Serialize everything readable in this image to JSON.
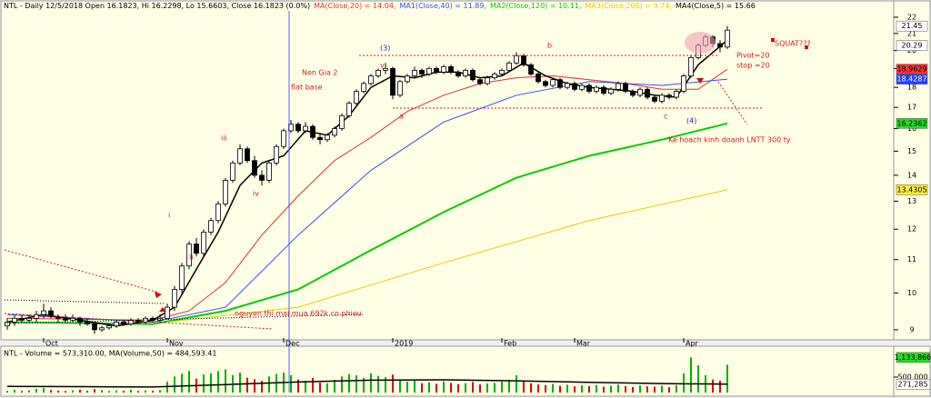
{
  "chart_data": [
    {
      "type": "candlestick",
      "header": "NTL - Daily 12/5/2018 Open 16.1823, Hi 16.2298, Lo 15.6603, Close 16.1823 (0.0%)",
      "log": true,
      "xlim": [
        -0.375,
        121.875
      ],
      "ylim": [
        8.79,
        22.4
      ],
      "yticks": [
        9,
        10,
        11,
        12,
        13,
        14,
        15,
        16,
        17,
        18,
        19,
        20,
        21,
        22
      ],
      "categories": [
        null,
        null,
        null,
        null,
        null,
        "Oct",
        null,
        null,
        null,
        null,
        null,
        null,
        null,
        null,
        null,
        null,
        null,
        null,
        null,
        null,
        null,
        null,
        "Nov",
        null,
        null,
        null,
        null,
        null,
        null,
        null,
        null,
        null,
        null,
        null,
        null,
        null,
        null,
        null,
        "Dec",
        null,
        null,
        null,
        null,
        null,
        null,
        null,
        null,
        null,
        null,
        null,
        null,
        null,
        null,
        "2019",
        null,
        null,
        null,
        null,
        null,
        null,
        null,
        null,
        null,
        null,
        null,
        null,
        null,
        null,
        "Feb",
        null,
        null,
        null,
        null,
        null,
        null,
        null,
        null,
        null,
        "Mar",
        null,
        null,
        null,
        null,
        null,
        null,
        null,
        null,
        null,
        null,
        null,
        null,
        null,
        null,
        "Apr",
        null,
        null,
        null,
        null,
        null,
        null
      ],
      "ohlc": [
        [
          9.1,
          9.3,
          9.0,
          9.2
        ],
        [
          9.2,
          9.4,
          9.1,
          9.3
        ],
        [
          9.3,
          9.4,
          9.2,
          9.25
        ],
        [
          9.25,
          9.4,
          9.2,
          9.3
        ],
        [
          9.3,
          9.5,
          9.2,
          9.4
        ],
        [
          9.4,
          9.7,
          9.3,
          9.5
        ],
        [
          9.5,
          9.6,
          9.3,
          9.35
        ],
        [
          9.35,
          9.4,
          9.2,
          9.3
        ],
        [
          9.3,
          9.4,
          9.2,
          9.25
        ],
        [
          9.25,
          9.4,
          9.2,
          9.3
        ],
        [
          9.3,
          9.35,
          9.1,
          9.2
        ],
        [
          9.2,
          9.3,
          9.1,
          9.15
        ],
        [
          9.15,
          9.2,
          8.9,
          9.0
        ],
        [
          9.0,
          9.1,
          8.95,
          9.05
        ],
        [
          9.05,
          9.15,
          9.0,
          9.1
        ],
        [
          9.1,
          9.25,
          9.05,
          9.2
        ],
        [
          9.2,
          9.25,
          9.1,
          9.15
        ],
        [
          9.15,
          9.3,
          9.1,
          9.25
        ],
        [
          9.25,
          9.3,
          9.15,
          9.2
        ],
        [
          9.2,
          9.35,
          9.15,
          9.3
        ],
        [
          9.3,
          9.35,
          9.2,
          9.25
        ],
        [
          9.25,
          9.4,
          9.2,
          9.3
        ],
        [
          9.3,
          9.7,
          9.3,
          9.6
        ],
        [
          9.6,
          10.2,
          9.5,
          10.1
        ],
        [
          10.1,
          10.9,
          10.0,
          10.8
        ],
        [
          10.8,
          11.6,
          10.7,
          11.5
        ],
        [
          11.5,
          11.7,
          11.1,
          11.2
        ],
        [
          11.2,
          12.0,
          11.1,
          11.9
        ],
        [
          11.9,
          12.4,
          11.8,
          12.3
        ],
        [
          12.3,
          13.0,
          12.2,
          12.9
        ],
        [
          12.9,
          13.9,
          12.8,
          13.8
        ],
        [
          13.8,
          14.6,
          13.7,
          14.5
        ],
        [
          14.5,
          15.3,
          14.4,
          15.1
        ],
        [
          15.1,
          15.2,
          14.5,
          14.6
        ],
        [
          14.6,
          14.8,
          13.9,
          14.0
        ],
        [
          14.0,
          14.2,
          13.6,
          13.8
        ],
        [
          13.8,
          14.6,
          13.7,
          14.5
        ],
        [
          14.5,
          15.3,
          14.4,
          15.2
        ],
        [
          15.2,
          16.0,
          15.1,
          15.9
        ],
        [
          15.9,
          16.4,
          15.8,
          16.2
        ],
        [
          16.2,
          16.3,
          15.8,
          15.9
        ],
        [
          15.9,
          16.3,
          15.8,
          16.1
        ],
        [
          16.1,
          16.2,
          15.5,
          15.6
        ],
        [
          15.6,
          15.8,
          15.3,
          15.5
        ],
        [
          15.5,
          15.8,
          15.4,
          15.7
        ],
        [
          15.7,
          16.1,
          15.6,
          16.0
        ],
        [
          16.0,
          16.7,
          15.9,
          16.6
        ],
        [
          16.6,
          17.3,
          16.5,
          17.2
        ],
        [
          17.2,
          17.9,
          17.1,
          17.8
        ],
        [
          17.8,
          18.3,
          17.7,
          18.2
        ],
        [
          18.2,
          18.7,
          18.1,
          18.6
        ],
        [
          18.6,
          19.0,
          18.5,
          18.9
        ],
        [
          18.9,
          19.3,
          18.7,
          19.0
        ],
        [
          19.0,
          19.1,
          17.4,
          17.6
        ],
        [
          17.6,
          18.4,
          17.5,
          18.3
        ],
        [
          18.3,
          18.7,
          18.2,
          18.6
        ],
        [
          18.6,
          19.1,
          18.5,
          18.9
        ],
        [
          18.9,
          19.0,
          18.5,
          18.7
        ],
        [
          18.7,
          19.1,
          18.6,
          19.0
        ],
        [
          19.0,
          19.1,
          18.7,
          18.8
        ],
        [
          18.8,
          19.2,
          18.7,
          19.1
        ],
        [
          19.1,
          19.2,
          18.7,
          18.8
        ],
        [
          18.8,
          18.9,
          18.5,
          18.6
        ],
        [
          18.6,
          19.0,
          18.5,
          18.9
        ],
        [
          18.9,
          19.0,
          18.3,
          18.4
        ],
        [
          18.4,
          18.5,
          18.1,
          18.2
        ],
        [
          18.2,
          18.6,
          18.1,
          18.5
        ],
        [
          18.5,
          18.8,
          18.4,
          18.7
        ],
        [
          18.7,
          19.0,
          18.6,
          18.9
        ],
        [
          18.9,
          19.4,
          18.8,
          19.3
        ],
        [
          19.3,
          19.9,
          19.2,
          19.7
        ],
        [
          19.7,
          19.8,
          19.1,
          19.2
        ],
        [
          19.2,
          19.3,
          18.6,
          18.7
        ],
        [
          18.7,
          18.8,
          18.2,
          18.3
        ],
        [
          18.3,
          18.4,
          18.0,
          18.1
        ],
        [
          18.1,
          18.5,
          18.0,
          18.4
        ],
        [
          18.4,
          18.5,
          17.9,
          18.0
        ],
        [
          18.0,
          18.3,
          17.9,
          18.2
        ],
        [
          18.2,
          18.3,
          17.8,
          17.9
        ],
        [
          17.9,
          18.2,
          17.8,
          18.1
        ],
        [
          18.1,
          18.2,
          17.7,
          17.8
        ],
        [
          17.8,
          18.1,
          17.7,
          18.0
        ],
        [
          18.0,
          18.1,
          17.6,
          17.7
        ],
        [
          17.7,
          18.0,
          17.6,
          17.9
        ],
        [
          17.9,
          18.3,
          17.8,
          18.2
        ],
        [
          18.2,
          18.3,
          17.7,
          17.8
        ],
        [
          17.8,
          17.9,
          17.5,
          17.6
        ],
        [
          17.6,
          18.0,
          17.5,
          17.9
        ],
        [
          17.9,
          18.0,
          17.4,
          17.5
        ],
        [
          17.5,
          17.6,
          17.2,
          17.3
        ],
        [
          17.3,
          17.7,
          17.2,
          17.6
        ],
        [
          17.6,
          17.7,
          17.4,
          17.5
        ],
        [
          17.5,
          17.9,
          17.4,
          17.8
        ],
        [
          17.8,
          18.7,
          17.7,
          18.6
        ],
        [
          18.6,
          19.7,
          18.5,
          19.6
        ],
        [
          19.6,
          20.4,
          19.5,
          20.3
        ],
        [
          20.3,
          20.9,
          20.2,
          20.8
        ],
        [
          20.8,
          20.9,
          20.2,
          20.4
        ],
        [
          20.4,
          20.6,
          19.9,
          20.2
        ],
        [
          20.2,
          21.45,
          20.1,
          21.2
        ]
      ],
      "series": [
        {
          "name": "MA(Close,20) = 14.04,",
          "color": "#e03030",
          "line_width": 1,
          "x": [
            0,
            20,
            25,
            30,
            35,
            40,
            45,
            50,
            55,
            60,
            65,
            70,
            75,
            80,
            85,
            90,
            95,
            99
          ],
          "values": [
            9.3,
            9.25,
            9.5,
            10.3,
            11.8,
            13.2,
            14.6,
            15.6,
            16.8,
            17.6,
            18.2,
            18.5,
            18.6,
            18.4,
            18.2,
            17.9,
            17.9,
            18.96
          ]
        },
        {
          "name": "MA1(Close,40) = 11.89,",
          "color": "#3050ff",
          "line_width": 1,
          "x": [
            0,
            20,
            30,
            40,
            50,
            60,
            70,
            80,
            90,
            99
          ],
          "values": [
            9.4,
            9.2,
            9.6,
            11.8,
            14.2,
            16.3,
            17.6,
            18.3,
            18.1,
            18.4287
          ]
        },
        {
          "name": "MA2(Close,120) = 10.11,",
          "color": "#00cc00",
          "line_width": 2,
          "x": [
            0,
            20,
            30,
            40,
            50,
            60,
            70,
            80,
            90,
            99
          ],
          "values": [
            9.2,
            9.15,
            9.5,
            10.1,
            11.3,
            12.6,
            13.9,
            14.8,
            15.5,
            16.2362
          ]
        },
        {
          "name": "MA3(Close,200) = 9.74,",
          "color": "#f0c800",
          "line_width": 1,
          "x": [
            22,
            40,
            60,
            80,
            99
          ],
          "values": [
            9.2,
            9.6,
            10.9,
            12.3,
            13.4305
          ]
        },
        {
          "name": "MA4(Close,5) = 15.66",
          "color": "#000000",
          "line_width": 1.5,
          "x": [
            0,
            5,
            10,
            15,
            20,
            23,
            26,
            29,
            32,
            35,
            38,
            41,
            44,
            47,
            50,
            53,
            56,
            59,
            62,
            65,
            68,
            71,
            74,
            77,
            80,
            83,
            86,
            89,
            92,
            95,
            99
          ],
          "values": [
            9.2,
            9.4,
            9.25,
            9.1,
            9.25,
            9.6,
            10.7,
            11.9,
            13.6,
            14.5,
            14.8,
            15.9,
            15.7,
            16.6,
            18.0,
            18.6,
            18.5,
            18.8,
            18.8,
            18.5,
            18.6,
            19.3,
            18.6,
            18.2,
            18.0,
            17.9,
            17.8,
            17.6,
            17.5,
            19.2,
            20.6
          ]
        }
      ],
      "right_labels": [
        {
          "value": 21.45,
          "color": "#ffffff"
        },
        {
          "value": 20.29,
          "color": "#ffffff"
        },
        {
          "value": 18.9629,
          "color": "#ff3030"
        },
        {
          "value": 18.4287,
          "color": "#2040ff"
        },
        {
          "value": 16.2362,
          "color": "#22dd22"
        },
        {
          "value": 13.4305,
          "color": "#ffee33"
        }
      ],
      "annotations": [
        {
          "text": "(3)",
          "color": "#2020cc"
        },
        {
          "text": "b",
          "color": "#cc2020"
        },
        {
          "text": "Nen Gia 2",
          "color": "#cc2020"
        },
        {
          "text": "flat base",
          "color": "#cc2020"
        },
        {
          "text": "v",
          "color": "#cc2020"
        },
        {
          "text": "iii",
          "color": "#cc2020"
        },
        {
          "text": "iv",
          "color": "#cc2020"
        },
        {
          "text": "ii",
          "color": "#cc2020"
        },
        {
          "text": "i",
          "color": "#cc2020"
        },
        {
          "text": "a",
          "color": "#cc2020"
        },
        {
          "text": "c",
          "color": "#cc2020"
        },
        {
          "text": "(4)",
          "color": "#2020cc"
        },
        {
          "text": "Pivot=20",
          "color": "#cc2020"
        },
        {
          "text": "stop =20",
          "color": "#cc2020"
        },
        {
          "text": "SQUAT???",
          "color": "#cc2020"
        },
        {
          "text": "Ke hoach kinh doanh LNTT 300 ty",
          "color": "#cc2020"
        },
        {
          "text": "nguyen thi mai mua 692k co phieu",
          "color": "#cc2020"
        }
      ]
    },
    {
      "type": "bar",
      "title": "NTL - Volume = 573,310.00, MA(Volume,50) = 484,593.41",
      "up_color": "#00b000",
      "down_color": "#e00000",
      "ylim": [
        0,
        1440000
      ],
      "yticks": [
        {
          "value": 500000,
          "label": "500,000"
        }
      ],
      "values": [
        60000,
        90000,
        50000,
        70000,
        120000,
        150000,
        80000,
        60000,
        50000,
        70000,
        90000,
        60000,
        110000,
        80000,
        50000,
        70000,
        60000,
        90000,
        50000,
        70000,
        60000,
        80000,
        350000,
        520000,
        610000,
        700000,
        450000,
        580000,
        620000,
        690000,
        750000,
        560000,
        640000,
        480000,
        430000,
        380000,
        520000,
        600000,
        650000,
        560000,
        420000,
        380000,
        470000,
        320000,
        300000,
        410000,
        520000,
        600000,
        560000,
        480000,
        620000,
        540000,
        500000,
        580000,
        420000,
        350000,
        390000,
        300000,
        330000,
        280000,
        360000,
        310000,
        270000,
        300000,
        340000,
        260000,
        290000,
        310000,
        350000,
        420000,
        560000,
        380000,
        300000,
        260000,
        240000,
        280000,
        220000,
        250000,
        200000,
        230000,
        210000,
        240000,
        190000,
        220000,
        260000,
        210000,
        180000,
        230000,
        200000,
        190000,
        220000,
        170000,
        240000,
        620000,
        1133866,
        880000,
        560000,
        420000,
        380000,
        900000
      ],
      "ma": {
        "color": "#000000",
        "x": [
          0,
          10,
          20,
          30,
          40,
          50,
          60,
          70,
          80,
          90,
          99
        ],
        "values": [
          200000,
          190000,
          180000,
          260000,
          340000,
          400000,
          410000,
          380000,
          330000,
          290000,
          271285
        ]
      },
      "right_labels": [
        {
          "value": 1133866,
          "label": "1,133,866",
          "color": "#22dd22"
        },
        {
          "value": 271285,
          "label": "271,285",
          "color": "#ffffff"
        }
      ]
    }
  ]
}
